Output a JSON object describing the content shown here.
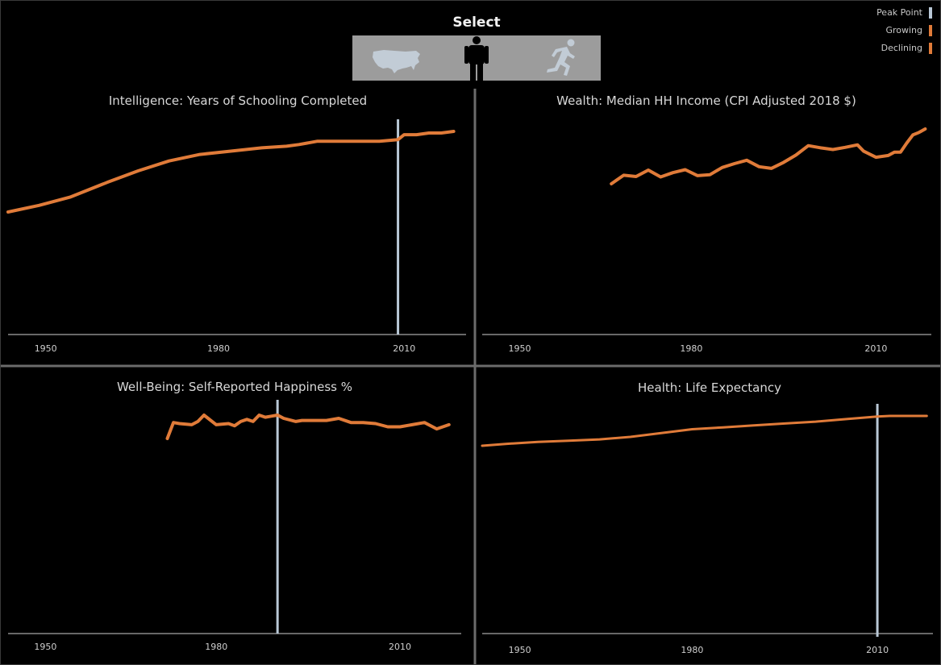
{
  "selector": {
    "title": "Select",
    "options": [
      {
        "icon": "usa-map-icon",
        "selected": false
      },
      {
        "icon": "person-icon",
        "selected": true
      },
      {
        "icon": "runner-icon",
        "selected": false
      }
    ]
  },
  "legend": {
    "items": [
      {
        "label": "Peak Point",
        "color": "#b9c8d6"
      },
      {
        "label": "Growing",
        "color": "#e07b39"
      },
      {
        "label": "Declining",
        "color": "#e07b39"
      }
    ]
  },
  "colors": {
    "line": "#e07b39",
    "peak": "#b9c8d6",
    "axis": "#cfcfcf",
    "divider": "#6b6b6b",
    "background": "#000000"
  },
  "chart_data": [
    {
      "type": "line",
      "title": "Intelligence: Years of Schooling Completed",
      "xlim": [
        1946,
        2020
      ],
      "ylim": [
        0,
        14
      ],
      "xticks": [
        1950,
        1980,
        2010
      ],
      "peak_x": 2009,
      "x": [
        1946,
        1951,
        1956,
        1962,
        1967,
        1972,
        1977,
        1982,
        1987,
        1991,
        1993,
        1996,
        2000,
        2003,
        2006,
        2009,
        2010,
        2012,
        2014,
        2016,
        2018
      ],
      "y": [
        9.4,
        9.8,
        10.3,
        11.2,
        11.9,
        12.5,
        12.9,
        13.1,
        13.3,
        13.4,
        13.5,
        13.7,
        13.7,
        13.7,
        13.7,
        13.8,
        14.1,
        14.1,
        14.2,
        14.2,
        14.3
      ]
    },
    {
      "type": "line",
      "title": "Wealth: Median HH Income (CPI Adjusted 2018 $)",
      "xlim": [
        1946,
        2019
      ],
      "ylim": [
        42000,
        62000
      ],
      "xticks": [
        1950,
        1980,
        2010
      ],
      "x": [
        1967,
        1969,
        1971,
        1973,
        1975,
        1977,
        1979,
        1981,
        1983,
        1985,
        1987,
        1989,
        1991,
        1993,
        1995,
        1997,
        1999,
        2001,
        2003,
        2005,
        2007,
        2008,
        2010,
        2012,
        2013,
        2014,
        2015,
        2016,
        2017,
        2018
      ],
      "y": [
        47000,
        49000,
        48700,
        50200,
        48600,
        49600,
        50300,
        48900,
        49100,
        50800,
        51700,
        52500,
        51000,
        50600,
        52000,
        53700,
        55900,
        55400,
        55000,
        55500,
        56100,
        54600,
        53200,
        53600,
        54400,
        54400,
        56500,
        58400,
        59000,
        59800
      ]
    },
    {
      "type": "line",
      "title": "Well-Being: Self-Reported Happiness %",
      "xlim": [
        1946,
        2020
      ],
      "ylim": [
        0,
        35
      ],
      "xticks": [
        1950,
        1980,
        2010
      ],
      "peak_x": 1990,
      "x": [
        1972,
        1973,
        1974,
        1976,
        1977,
        1978,
        1980,
        1982,
        1983,
        1984,
        1985,
        1986,
        1987,
        1988,
        1989,
        1990,
        1991,
        1993,
        1994,
        1996,
        1998,
        2000,
        2002,
        2004,
        2006,
        2008,
        2010,
        2012,
        2014,
        2016,
        2018
      ],
      "y": [
        30.0,
        31.5,
        31.4,
        31.3,
        31.6,
        32.2,
        31.3,
        31.4,
        31.2,
        31.6,
        31.8,
        31.6,
        32.2,
        32.0,
        32.1,
        32.2,
        31.9,
        31.6,
        31.7,
        31.7,
        31.7,
        31.9,
        31.5,
        31.5,
        31.4,
        31.1,
        31.1,
        31.3,
        31.5,
        30.9,
        31.3
      ]
    },
    {
      "type": "line",
      "title": "Health: Life Expectancy",
      "xlim": [
        1946,
        2019
      ],
      "ylim": [
        40,
        80
      ],
      "xticks": [
        1950,
        1980,
        2010
      ],
      "peak_x": 2010,
      "x": [
        1946,
        1950,
        1955,
        1960,
        1965,
        1970,
        1975,
        1980,
        1985,
        1990,
        1995,
        2000,
        2005,
        2010,
        2012,
        2014,
        2016,
        2018
      ],
      "y": [
        73.9,
        74.2,
        74.5,
        74.7,
        74.9,
        75.3,
        75.9,
        76.5,
        76.8,
        77.1,
        77.4,
        77.7,
        78.1,
        78.5,
        78.6,
        78.6,
        78.6,
        78.6
      ]
    }
  ]
}
